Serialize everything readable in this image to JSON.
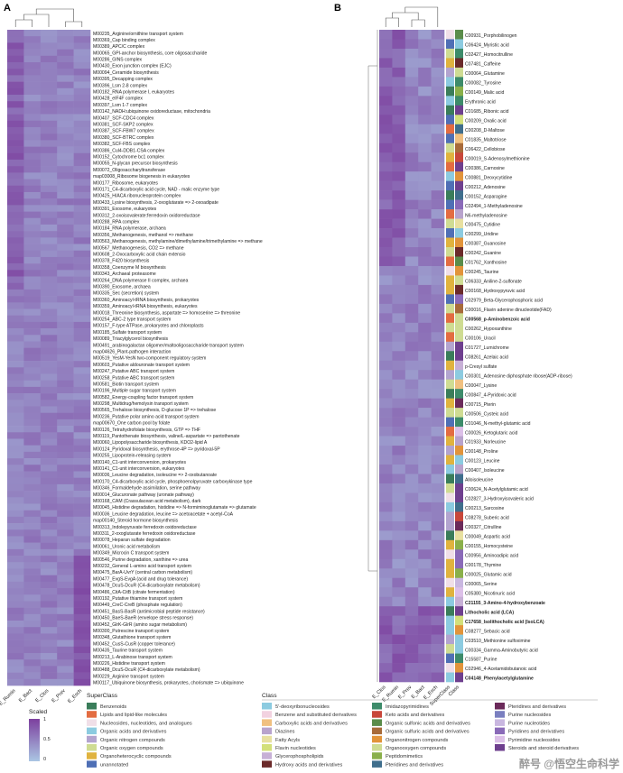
{
  "panels": {
    "a": "A",
    "b": "B"
  },
  "watermark": "醉号 @悟空生命科学",
  "colors": {
    "low": "#aac6e3",
    "high": "#7c3f9e"
  },
  "chart_data": [
    {
      "type": "heatmap",
      "panel": "A",
      "columns": [
        "E_Rumin",
        "E_Bact",
        "E_Clos",
        "E_Prev",
        "E_Esch"
      ],
      "rows": [
        "M00235_Arginine/ornithine transport system",
        "M00369_Cap binding complex",
        "M00389_APC/C complex",
        "M00065_GPI-anchor biosynthesis, core oligosaccharide",
        "M00286_GINS complex",
        "M00430_Exon junction complex (EJC)",
        "M00094_Ceramide biosynthesis",
        "M00395_Decapping complex",
        "M00396_Lsm 2-8 complex",
        "M00182_RNA polymerase I, eukaryotes",
        "M00428_eIF4F complex",
        "M00397_Lsm 1-7 complex",
        "M00142_NADH:ubiquinone oxidoreductase, mitochondria",
        "M00407_SCF-CDC4 complex",
        "M00381_SCF-SKP2 complex",
        "M00387_SCF-FBW7 complex",
        "M00380_SCF-BTRC complex",
        "M00382_SCF-FBS complex",
        "M00386_Cul4-DDB1-CSA complex",
        "M00152_Cytochrome bc1 complex",
        "M00055_N-glycan precursor biosynthesis",
        "M00072_Oligosaccharyltransferase",
        "map03008_Ribosome biogenesis in eukaryotes",
        "M00177_Ribosome, eukaryotes",
        "M00171_C4-dicarboxylic acid cycle, NAD - malic enzyme type",
        "M00425_H/ACA ribonucleoprotein complex",
        "M00433_Lysine biosynthesis, 2-oxoglutarate => 2-oxoadipate",
        "M00391_Exosome, eukaryotes",
        "M00312_2-oxoisovalerate:ferredoxin oxidoreductase",
        "M00288_RPA complex",
        "M00184_RNA polymerase, archaea",
        "M00356_Methanogenesis, methanol => methane",
        "M00563_Methanogenesis, methylamine/dimethylamine/trimethylamine => methane",
        "M00567_Methanogenesis, CO2 => methane",
        "M00608_2-Oxocarboxylic acid chain extensio",
        "M00378_F420 biosynthesis",
        "M00358_Coenzyme M biosynthesis",
        "M00343_Archaeal proteasome",
        "M00264_DNA polymerase II complex, archaea",
        "M00390_Exosome, archaea",
        "M00335_Sec (secretion) system",
        "M00360_Aminoacyl-tRNA biosynthesis, prokaryotes",
        "M00359_Aminoacyl-tRNA biosynthesis, eukaryotes",
        "M00018_Threonine biosynthesis, aspartate => homoserine => threonine",
        "M00254_ABC-2 type transport system",
        "M00157_F-type ATPase, prokaryotes and chloroplasts",
        "M00185_Sulfate transport system",
        "M00089_Triacylglycerol biosynthesis",
        "M00491_arabinogalactan oligomer/maltooligosaccharide transport system",
        "map04626_Plant-pathogen interaction",
        "M00519_YesM-YesN two-component regulatory system",
        "M00603_Putative aldouronate transport system",
        "M00247_Putative ABC transport system",
        "M00258_Putative ABC transport system",
        "M00581_Biotin transport system",
        "M00196_Multiple sugar transport system",
        "M00582_Energy-coupling factor transport system",
        "M00298_Multidrug/hemolysin transport system",
        "M00565_Trehalose biosynthesis, D-glucose 1P => trehalose",
        "M00236_Putative polar amino acid transport system",
        "map00670_One carbon pool by folate",
        "M00126_Tetrahydrofolate biosynthesis, GTP => THF",
        "M00119_Pantothenate biosynthesis, valine/L-aspartate => pantothenate",
        "M00060_Lipopolysaccharide biosynthesis, KDO2-lipid A",
        "M00124_Pyridoxal biosynthesis, erythrose-4P => pyridoxal-5P",
        "M00255_Lipoprotein-releasing system",
        "M00140_C1-unit interconversion, prokaryotes",
        "M00141_C1-unit interconversion, eukaryotes",
        "M00036_Leucine degradation, isoleucine => 2-oxobutanoate",
        "M00170_C4-dicarboxylic acid cycle, phosphoenolpyruvate carboxykinase type",
        "M00346_Formaldehyde assimilation, serine pathway",
        "M00014_Glucuronate pathway (uronate pathway)",
        "M00168_CAM (Crassulacean acid metabolism), dark",
        "M00045_Histidine degradation, histidine => N-formiminoglutamate => glutamate",
        "M00036_Leucine degradation, leucine => acetoacetate + acetyl-CoA",
        "map00140_Steroid hormone biosynthesis",
        "M00313_Indolepyruvate ferredoxin oxidoreductase",
        "M00311_2-oxoglutarate ferredoxin oxidoreductase",
        "M00078_Heparan sulfate degradation",
        "M00061_Uronic acid metabolism",
        "M00349_Microcin C transport system",
        "M00546_Purine degradation, xanthine => urea",
        "M00232_General L-amino acid transport system",
        "M00475_BarA-UvrY (central carbon metabolism)",
        "M00477_EvgS-EvgA (acid and drug tolerance)",
        "M00478_DcuS-DcuR (C4-dicarboxylate metabolism)",
        "M00486_CitA-CitB (citrate fermentation)",
        "M00192_Putative thiamine transport system",
        "M00449_CreC-CreB (phosphate regulation)",
        "M00451_BasS-BasR (antimicrobial peptide resistance)",
        "M00450_BaeS-BaeR (envelope stress response)",
        "M00452_GlrK-GlrR (amino sugar metabolism)",
        "M00300_Putrescine transport system",
        "M00348_Glutathione transport system",
        "M00452_CusS-CusR (copper tolerance)",
        "M00435_Taurine transport system",
        "M00213_L-Arabinose transport system",
        "M00226_Histidine transport system",
        "M00488_DcuS-DcuR (C4-dicarboxylate metabolism)",
        "M00229_Arginine transport system",
        "M00117_Ubiquinone biosynthesis, prokaryotes, chorismate => ubiquinone"
      ]
    },
    {
      "type": "heatmap",
      "panel": "B",
      "columns": [
        "E_Clos",
        "E_Rumin",
        "E_Prev",
        "E_Bact",
        "E_Esch",
        "SuperClass",
        "Class"
      ],
      "rows": [
        "C00931_Porphobilinogen",
        "C06424_Myristic acid",
        "C02427_Homocitrulline",
        "C07481_Caffeine",
        "C00064_Glutamine",
        "C00082_Tyrosine",
        "C00149_Malic acid",
        "Erythronic acid",
        "C01685_Ribonic acid",
        "C00209_Oxalic acid",
        "C00208_D-Maltose",
        "C01835_Maltotriose",
        "C06422_Cellobiose",
        "C00019_S-Adenosylmethionine",
        "C00386_Carnosine",
        "C00881_Deoxycytidine",
        "C00212_Adenosine",
        "C00152_Asparagine",
        "C02494_1-Methyladenosine",
        "N6-methyladenosine",
        "C00475_Cytidine",
        "C00299_Uridine",
        "C00387_Guanosine",
        "C00242_Guanine",
        "C01762_Xanthosine",
        "C00245_Taurine",
        "C06333_Aniline-2-sulfonate",
        "C00168_Hydroxypyruvic acid",
        "C02979_Beta-Glycerophosphoric acid",
        "C00016_Flavin adenine dinucleotide(FAD)",
        "C00568_p-Aminobenzoic acid",
        "C00262_Hypoxanthine",
        "C00106_Uracil",
        "C01727_Lumichrome",
        "C08261_Azelaic acid",
        "p-Cresyl sulfate",
        "C00301_Adenosine diphosphate ribose(ADP-ribose)",
        "C00047_Lysine",
        "C00847_4-Pyridoxic acid",
        "C00715_Pterin",
        "C00506_Cysteic acid",
        "C01046_N-methyl-glutamic acid",
        "C00026_Ketoglutaric acid",
        "C01933_Norleucine",
        "C00148_Proline",
        "C00123_Leucine",
        "C00407_Isoleucine",
        "Alloisoleucine",
        "C00624_N-Acetylglutamic acid",
        "C02827_3-Hydroxyisovaleric acid",
        "C00213_Sarcosine",
        "C08278_Suberic acid",
        "C00327_Citrulline",
        "C00049_Aspartic acid",
        "C00155_Homocysteine",
        "C00956_Aminoadipic acid",
        "C00178_Thymine",
        "C00025_Glutamic acid",
        "C00065_Serine",
        "C05380_Nicotinuric acid",
        "C21155_3-Amino-4-hydroxybenzoate",
        "Lithocholic acid (LCA)",
        "C17658_Isolithocholic acid (IsoLCA)",
        "C08277_Sebacic acid",
        "C03510_Methionine sulfoximine",
        "C00334_Gamma-Aminobutyric acid",
        "C15587_Purine",
        "C02946_4-Acetamidobutanoic acid",
        "C04148_Phenylacetylglutamine"
      ],
      "bold_rows": [
        "C00568_p-Aminobenzoic acid",
        "C21155_3-Amino-4-hydroxybenzoate",
        "Lithocholic acid (LCA)",
        "C17658_Isolithocholic acid (IsoLCA)",
        "C04148_Phenylacetylglutamine"
      ]
    }
  ],
  "legend": {
    "scale_title": "Scaled",
    "scale_ticks": [
      "1",
      "0.5",
      "0"
    ],
    "superclass_title": "SuperClass",
    "superclass": [
      {
        "label": "Benzenoids",
        "color": "#3a7d5a"
      },
      {
        "label": "Lipids and lipid-like molecules",
        "color": "#e36c41"
      },
      {
        "label": "Nucleosides, nucleotides, and analogues",
        "color": "#f0dfe8"
      },
      {
        "label": "Organic acids and derivatives",
        "color": "#8ccbe0"
      },
      {
        "label": "Organic nitrogen compounds",
        "color": "#b3a4cf"
      },
      {
        "label": "Organic oxygen compounds",
        "color": "#cfdc93"
      },
      {
        "label": "Organoheterocyclic compounds",
        "color": "#e0b33e"
      },
      {
        "label": "unannotated",
        "color": "#4f6fb5"
      }
    ],
    "class_title": "Class",
    "class_col1": [
      {
        "label": "5'-deoxyribonucleosides",
        "color": "#8ccbe0"
      },
      {
        "label": "Benzene and substituted derivatives",
        "color": "#f2d2e0"
      },
      {
        "label": "Carboxylic acids and derivatives",
        "color": "#f0c080"
      },
      {
        "label": "Diazines",
        "color": "#b8a3cc"
      },
      {
        "label": "Fatty Acyls",
        "color": "#e8e0a0"
      },
      {
        "label": "Flavin nucleotides",
        "color": "#d3e07a"
      },
      {
        "label": "Glycerophospholipids",
        "color": "#c7b0d6"
      },
      {
        "label": "Hydroxy acids and derivatives",
        "color": "#6b2a2a"
      }
    ],
    "class_col2": [
      {
        "label": "Imidazopyrimidines",
        "color": "#3d8b6a"
      },
      {
        "label": "Keto acids and derivatives",
        "color": "#c8473a"
      },
      {
        "label": "Organic sulfonic acids and derivatives",
        "color": "#5a8c4a"
      },
      {
        "label": "Organic sulfuric acids and derivatives",
        "color": "#a86b3a"
      },
      {
        "label": "Organonitrogen compounds",
        "color": "#e2943a"
      },
      {
        "label": "Organooxygen compounds",
        "color": "#cfdc93"
      },
      {
        "label": "Peptidomimetics",
        "color": "#8ab04a"
      },
      {
        "label": "Pteridines and derivatives",
        "color": "#3f6e8c"
      }
    ],
    "class_col3": [
      {
        "label": "Pteridines and derivatives",
        "color": "#6b2a5a"
      },
      {
        "label": "Purine nucleosides",
        "color": "#7a7fc0"
      },
      {
        "label": "Purine nucleotides",
        "color": "#c9b7e0"
      },
      {
        "label": "Pyridines and derivatives",
        "color": "#8a6ab8"
      },
      {
        "label": "Pyrimidine nucleosides",
        "color": "#dcc0e8"
      },
      {
        "label": "Steroids and steroid derivatives",
        "color": "#6e3f8e"
      }
    ]
  }
}
